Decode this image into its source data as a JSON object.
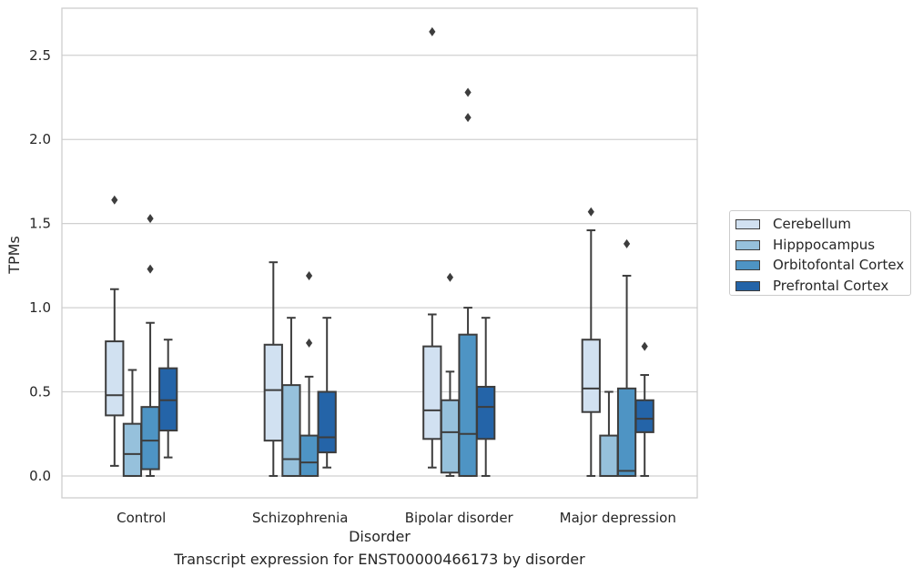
{
  "chart_data": {
    "type": "box",
    "title": "",
    "caption": "Transcript expression for ENST00000466173 by disorder",
    "xlabel": "Disorder",
    "ylabel": "TPMs",
    "ylim": [
      -0.13,
      2.78
    ],
    "yticks": [
      0.0,
      0.5,
      1.0,
      1.5,
      2.0,
      2.5
    ],
    "ytick_labels": [
      "0.0",
      "0.5",
      "1.0",
      "1.5",
      "2.0",
      "2.5"
    ],
    "categories": [
      "Control",
      "Schizophrenia",
      "Bipolar disorder",
      "Major depression"
    ],
    "grid": "horizontal",
    "legend_position": "right",
    "series": [
      {
        "name": "Cerebellum",
        "color": "#d1e1f1",
        "boxes": [
          {
            "whislo": 0.06,
            "q1": 0.36,
            "med": 0.48,
            "q3": 0.8,
            "whishi": 1.11,
            "fliers": [
              1.64
            ]
          },
          {
            "whislo": 0.0,
            "q1": 0.21,
            "med": 0.51,
            "q3": 0.78,
            "whishi": 1.27,
            "fliers": []
          },
          {
            "whislo": 0.05,
            "q1": 0.22,
            "med": 0.39,
            "q3": 0.77,
            "whishi": 0.96,
            "fliers": [
              2.64
            ]
          },
          {
            "whislo": 0.0,
            "q1": 0.38,
            "med": 0.52,
            "q3": 0.81,
            "whishi": 1.46,
            "fliers": [
              1.57
            ]
          }
        ]
      },
      {
        "name": "Hipppocampus",
        "color": "#96c1dc",
        "boxes": [
          {
            "whislo": 0.0,
            "q1": 0.0,
            "med": 0.13,
            "q3": 0.31,
            "whishi": 0.63,
            "fliers": []
          },
          {
            "whislo": 0.0,
            "q1": 0.0,
            "med": 0.1,
            "q3": 0.54,
            "whishi": 0.94,
            "fliers": []
          },
          {
            "whislo": 0.0,
            "q1": 0.02,
            "med": 0.26,
            "q3": 0.45,
            "whishi": 0.62,
            "fliers": [
              1.18
            ]
          },
          {
            "whislo": 0.0,
            "q1": 0.0,
            "med": 0.0,
            "q3": 0.24,
            "whishi": 0.5,
            "fliers": []
          }
        ]
      },
      {
        "name": "Orbitofontal Cortex",
        "color": "#4e94c4",
        "boxes": [
          {
            "whislo": 0.0,
            "q1": 0.04,
            "med": 0.21,
            "q3": 0.41,
            "whishi": 0.91,
            "fliers": [
              1.23,
              1.53
            ]
          },
          {
            "whislo": 0.0,
            "q1": 0.0,
            "med": 0.08,
            "q3": 0.24,
            "whishi": 0.59,
            "fliers": [
              0.79,
              1.19
            ]
          },
          {
            "whislo": 0.0,
            "q1": 0.0,
            "med": 0.25,
            "q3": 0.84,
            "whishi": 1.0,
            "fliers": [
              2.13,
              2.28
            ]
          },
          {
            "whislo": 0.0,
            "q1": 0.0,
            "med": 0.03,
            "q3": 0.52,
            "whishi": 1.19,
            "fliers": [
              1.38
            ]
          }
        ]
      },
      {
        "name": "Prefrontal Cortex",
        "color": "#2464a8",
        "boxes": [
          {
            "whislo": 0.11,
            "q1": 0.27,
            "med": 0.45,
            "q3": 0.64,
            "whishi": 0.81,
            "fliers": []
          },
          {
            "whislo": 0.05,
            "q1": 0.14,
            "med": 0.23,
            "q3": 0.5,
            "whishi": 0.94,
            "fliers": []
          },
          {
            "whislo": 0.0,
            "q1": 0.22,
            "med": 0.41,
            "q3": 0.53,
            "whishi": 0.94,
            "fliers": []
          },
          {
            "whislo": 0.0,
            "q1": 0.26,
            "med": 0.34,
            "q3": 0.45,
            "whishi": 0.6,
            "fliers": [
              0.77
            ]
          }
        ]
      }
    ]
  }
}
